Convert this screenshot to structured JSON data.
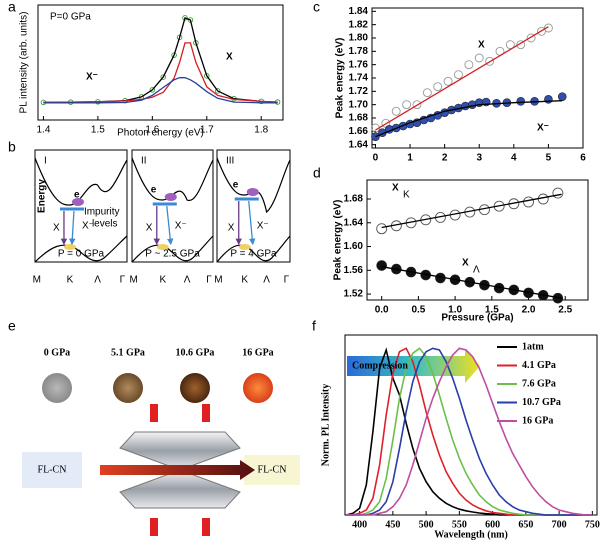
{
  "chart_data": [
    {
      "type": "line",
      "panel_label": "a",
      "xlabel": "Photon energy (eV)",
      "ylabel": "PL intensity (arb. units)",
      "x": [
        1.4,
        1.45,
        1.5,
        1.55,
        1.58,
        1.6,
        1.62,
        1.64,
        1.65,
        1.66,
        1.67,
        1.68,
        1.7,
        1.72,
        1.75,
        1.8,
        1.83
      ],
      "xlim": [
        1.39,
        1.84
      ],
      "xticks": [
        1.4,
        1.5,
        1.6,
        1.7,
        1.8
      ],
      "ylim": [
        0,
        1
      ],
      "series": [
        {
          "color": "#3a9a3a",
          "style": "open-markers",
          "values": [
            0.153,
            0.155,
            0.158,
            0.168,
            0.201,
            0.262,
            0.373,
            0.564,
            0.719,
            0.888,
            0.87,
            0.671,
            0.384,
            0.253,
            0.185,
            0.162,
            0.156
          ]
        },
        {
          "color": "#000000",
          "style": "line",
          "values": [
            0.153,
            0.155,
            0.158,
            0.168,
            0.201,
            0.262,
            0.373,
            0.564,
            0.719,
            0.888,
            0.87,
            0.671,
            0.384,
            0.253,
            0.185,
            0.162,
            0.156
          ]
        },
        {
          "color": "#d42020",
          "style": "line",
          "values": [
            0.153,
            0.155,
            0.158,
            0.166,
            0.179,
            0.198,
            0.24,
            0.364,
            0.501,
            0.67,
            0.67,
            0.501,
            0.288,
            0.214,
            0.179,
            0.162,
            0.156
          ]
        },
        {
          "color": "#2a3f9a",
          "style": "line",
          "values": [
            0.15,
            0.15,
            0.15,
            0.152,
            0.172,
            0.214,
            0.283,
            0.35,
            0.368,
            0.368,
            0.35,
            0.32,
            0.246,
            0.189,
            0.156,
            0.15,
            0.15
          ]
        }
      ],
      "annotations": [
        {
          "text": "P=0 GPa",
          "color": "#000000"
        },
        {
          "text": "X⁻",
          "color": "#2a3f9a"
        },
        {
          "text": "X",
          "color": "#d42020"
        }
      ]
    },
    {
      "type": "scatter",
      "panel_label": "c",
      "ylabel": "Peak energy (eV)",
      "xlim": [
        -0.1,
        6.0
      ],
      "xticks": [
        0,
        1,
        2,
        3,
        4,
        5,
        6
      ],
      "ylim": [
        1.635,
        1.845
      ],
      "yticks": [
        1.64,
        1.66,
        1.68,
        {
          "value": 1.7,
          "label": "1.70"
        },
        1.72,
        1.74,
        1.76,
        1.78,
        {
          "value": 1.8,
          "label": "1.80"
        },
        1.82,
        1.84
      ],
      "series": [
        {
          "color": "#999999",
          "style": "open-markers",
          "x": [
            0,
            0.3,
            0.6,
            0.9,
            1.2,
            1.5,
            1.8,
            2.1,
            2.4,
            2.7,
            3.0,
            3.3,
            3.6,
            3.9,
            4.2,
            4.5,
            4.8,
            5.0
          ],
          "values": [
            1.665,
            1.672,
            1.69,
            1.7,
            1.7,
            1.718,
            1.727,
            1.735,
            1.745,
            1.76,
            1.77,
            1.765,
            1.78,
            1.79,
            1.79,
            1.8,
            1.81,
            1.815
          ]
        },
        {
          "color": "#d42020",
          "style": "line",
          "x": [
            0,
            5
          ],
          "values": [
            1.662,
            1.817
          ]
        },
        {
          "color": "#2f4fb0",
          "style": "filled-markers",
          "x": [
            0,
            0.2,
            0.4,
            0.6,
            0.8,
            1.0,
            1.2,
            1.4,
            1.6,
            1.8,
            2.0,
            2.2,
            2.4,
            2.6,
            2.8,
            3.0,
            3.2,
            3.5,
            3.8,
            4.2,
            4.6,
            5.0,
            5.4
          ],
          "values": [
            1.652,
            1.658,
            1.663,
            1.665,
            1.668,
            1.671,
            1.673,
            1.677,
            1.68,
            1.684,
            1.688,
            1.692,
            1.695,
            1.698,
            1.7,
            1.703,
            1.704,
            1.702,
            1.703,
            1.705,
            1.705,
            1.708,
            1.712
          ]
        },
        {
          "color": "#000000",
          "style": "line",
          "x": [
            0,
            1,
            2,
            3,
            4,
            5.4
          ],
          "values": [
            1.652,
            1.673,
            1.69,
            1.7,
            1.703,
            1.706
          ]
        }
      ],
      "annotations": [
        {
          "text": "X",
          "color": "#d42020"
        },
        {
          "text": "X⁻",
          "color": "#000000"
        }
      ]
    },
    {
      "type": "scatter",
      "panel_label": "d",
      "xlabel": "Pressure (GPa)",
      "ylabel": "Peak energy (eV)",
      "xlim": [
        -0.2,
        2.81
      ],
      "xticks": [
        {
          "value": 0,
          "label": "0.0"
        },
        0.5,
        {
          "value": 1,
          "label": "1.0"
        },
        1.5,
        {
          "value": 2,
          "label": "2.0"
        },
        2.5
      ],
      "ylim": [
        1.51,
        1.712
      ],
      "yticks": [
        1.52,
        1.56,
        {
          "value": 1.6,
          "label": "1.60"
        },
        1.64,
        1.68
      ],
      "series": [
        {
          "color": "#555555",
          "style": "open-markers",
          "x": [
            0,
            0.2,
            0.4,
            0.6,
            0.8,
            1.0,
            1.2,
            1.4,
            1.6,
            1.8,
            2.0,
            2.2,
            2.4
          ],
          "values": [
            1.63,
            1.635,
            1.64,
            1.645,
            1.649,
            1.653,
            1.658,
            1.662,
            1.668,
            1.672,
            1.675,
            1.68,
            1.69
          ]
        },
        {
          "color": "#000000",
          "style": "line",
          "x": [
            0,
            2.45
          ],
          "values": [
            1.632,
            1.688
          ]
        },
        {
          "color": "#111111",
          "style": "filled-markers",
          "x": [
            0,
            0.2,
            0.4,
            0.6,
            0.8,
            1.0,
            1.2,
            1.4,
            1.6,
            1.8,
            2.0,
            2.2,
            2.4
          ],
          "values": [
            1.568,
            1.562,
            1.557,
            1.552,
            1.547,
            1.544,
            1.54,
            1.535,
            1.53,
            1.527,
            1.522,
            1.518,
            1.513
          ]
        },
        {
          "color": "#000000",
          "style": "line",
          "x": [
            0,
            2.45
          ],
          "values": [
            1.566,
            1.513
          ]
        }
      ],
      "annotations": [
        {
          "text": "X",
          "sub": "K",
          "color": "#d42020"
        },
        {
          "text": "X",
          "sub": "Λ",
          "color": "#2a3f9a"
        }
      ]
    },
    {
      "type": "line",
      "panel_label": "f",
      "xlabel": "Wavelength (nm)",
      "ylabel": "Norm. PL Intensity",
      "x": [
        380,
        390,
        400,
        410,
        420,
        430,
        440,
        450,
        460,
        470,
        480,
        490,
        500,
        510,
        520,
        530,
        540,
        550,
        560,
        570,
        580,
        590,
        600,
        610,
        620,
        630,
        640,
        650,
        660,
        670,
        680,
        690,
        700,
        710,
        720,
        730,
        740,
        750
      ],
      "xlim": [
        378,
        757
      ],
      "xticks": [
        400,
        450,
        500,
        550,
        600,
        650,
        700,
        750
      ],
      "ylim": [
        0,
        1.08
      ],
      "legend": "upper right",
      "series": [
        {
          "name": "1atm",
          "color": "#000000",
          "style": "line",
          "values": [
            0,
            0.01,
            0.04,
            0.18,
            0.5,
            0.88,
            0.99,
            0.82,
            0.72,
            0.55,
            0.4,
            0.28,
            0.2,
            0.14,
            0.1,
            0.07,
            0.05,
            0.035,
            0.025,
            0.018,
            0.012,
            0.008,
            0.005,
            0,
            0,
            0,
            0,
            0,
            0,
            0,
            0,
            0,
            0,
            0,
            0,
            0,
            0,
            0
          ]
        },
        {
          "name": "4.1 GPa",
          "color": "#e0202a",
          "style": "line",
          "values": [
            0,
            0,
            0.01,
            0.03,
            0.1,
            0.3,
            0.6,
            0.85,
            0.98,
            1.0,
            0.92,
            0.78,
            0.62,
            0.48,
            0.36,
            0.26,
            0.19,
            0.13,
            0.09,
            0.06,
            0.04,
            0.025,
            0.015,
            0.01,
            0.005,
            0,
            0,
            0,
            0,
            0,
            0,
            0,
            0,
            0,
            0,
            0,
            0,
            0
          ]
        },
        {
          "name": "7.6 GPa",
          "color": "#6cc04a",
          "style": "line",
          "values": [
            0,
            0,
            0,
            0.01,
            0.03,
            0.08,
            0.22,
            0.45,
            0.7,
            0.88,
            0.97,
            1.0,
            0.95,
            0.85,
            0.72,
            0.58,
            0.45,
            0.34,
            0.25,
            0.18,
            0.12,
            0.08,
            0.05,
            0.03,
            0.02,
            0.01,
            0.005,
            0,
            0,
            0,
            0,
            0,
            0,
            0,
            0,
            0,
            0,
            0
          ]
        },
        {
          "name": "10.7 GPa",
          "color": "#2a3ea8",
          "style": "line",
          "values": [
            0,
            0,
            0,
            0,
            0.01,
            0.03,
            0.08,
            0.2,
            0.4,
            0.62,
            0.8,
            0.92,
            0.98,
            1.0,
            0.99,
            0.92,
            0.82,
            0.7,
            0.57,
            0.45,
            0.34,
            0.25,
            0.18,
            0.12,
            0.08,
            0.05,
            0.03,
            0.02,
            0.01,
            0.005,
            0,
            0,
            0,
            0,
            0,
            0,
            0,
            0
          ]
        },
        {
          "name": "16 GPa",
          "color": "#c04ea0",
          "style": "line",
          "values": [
            0,
            0,
            0,
            0,
            0,
            0.01,
            0.02,
            0.05,
            0.1,
            0.18,
            0.3,
            0.44,
            0.58,
            0.7,
            0.8,
            0.89,
            0.96,
            1.0,
            0.99,
            0.95,
            0.88,
            0.78,
            0.67,
            0.56,
            0.46,
            0.37,
            0.3,
            0.23,
            0.17,
            0.12,
            0.08,
            0.05,
            0.03,
            0.02,
            0.01,
            0.005,
            0,
            0
          ]
        }
      ],
      "annotations": [
        {
          "text": "Compression",
          "color": "#000000"
        }
      ]
    }
  ],
  "diagram_b": {
    "panel_label": "b",
    "energy_label": "Energy",
    "electron": "e",
    "impurity": "Impurity",
    "levels": "levels",
    "exciton": "X",
    "trion": "X⁻",
    "k_labels": [
      "M",
      "K",
      "Λ",
      "Γ"
    ],
    "panels": [
      {
        "roman": "I",
        "pressure": "P = 0 GPa"
      },
      {
        "roman": "II",
        "pressure": "P ~ 2.5 GPa"
      },
      {
        "roman": "III",
        "pressure": "P = 4 GPa"
      }
    ]
  },
  "diagram_e": {
    "panel_label": "e",
    "pressures": [
      "0 GPa",
      "5.1 GPa",
      "10.6 GPa",
      "16 GPa"
    ],
    "sample": "FL-CN"
  }
}
